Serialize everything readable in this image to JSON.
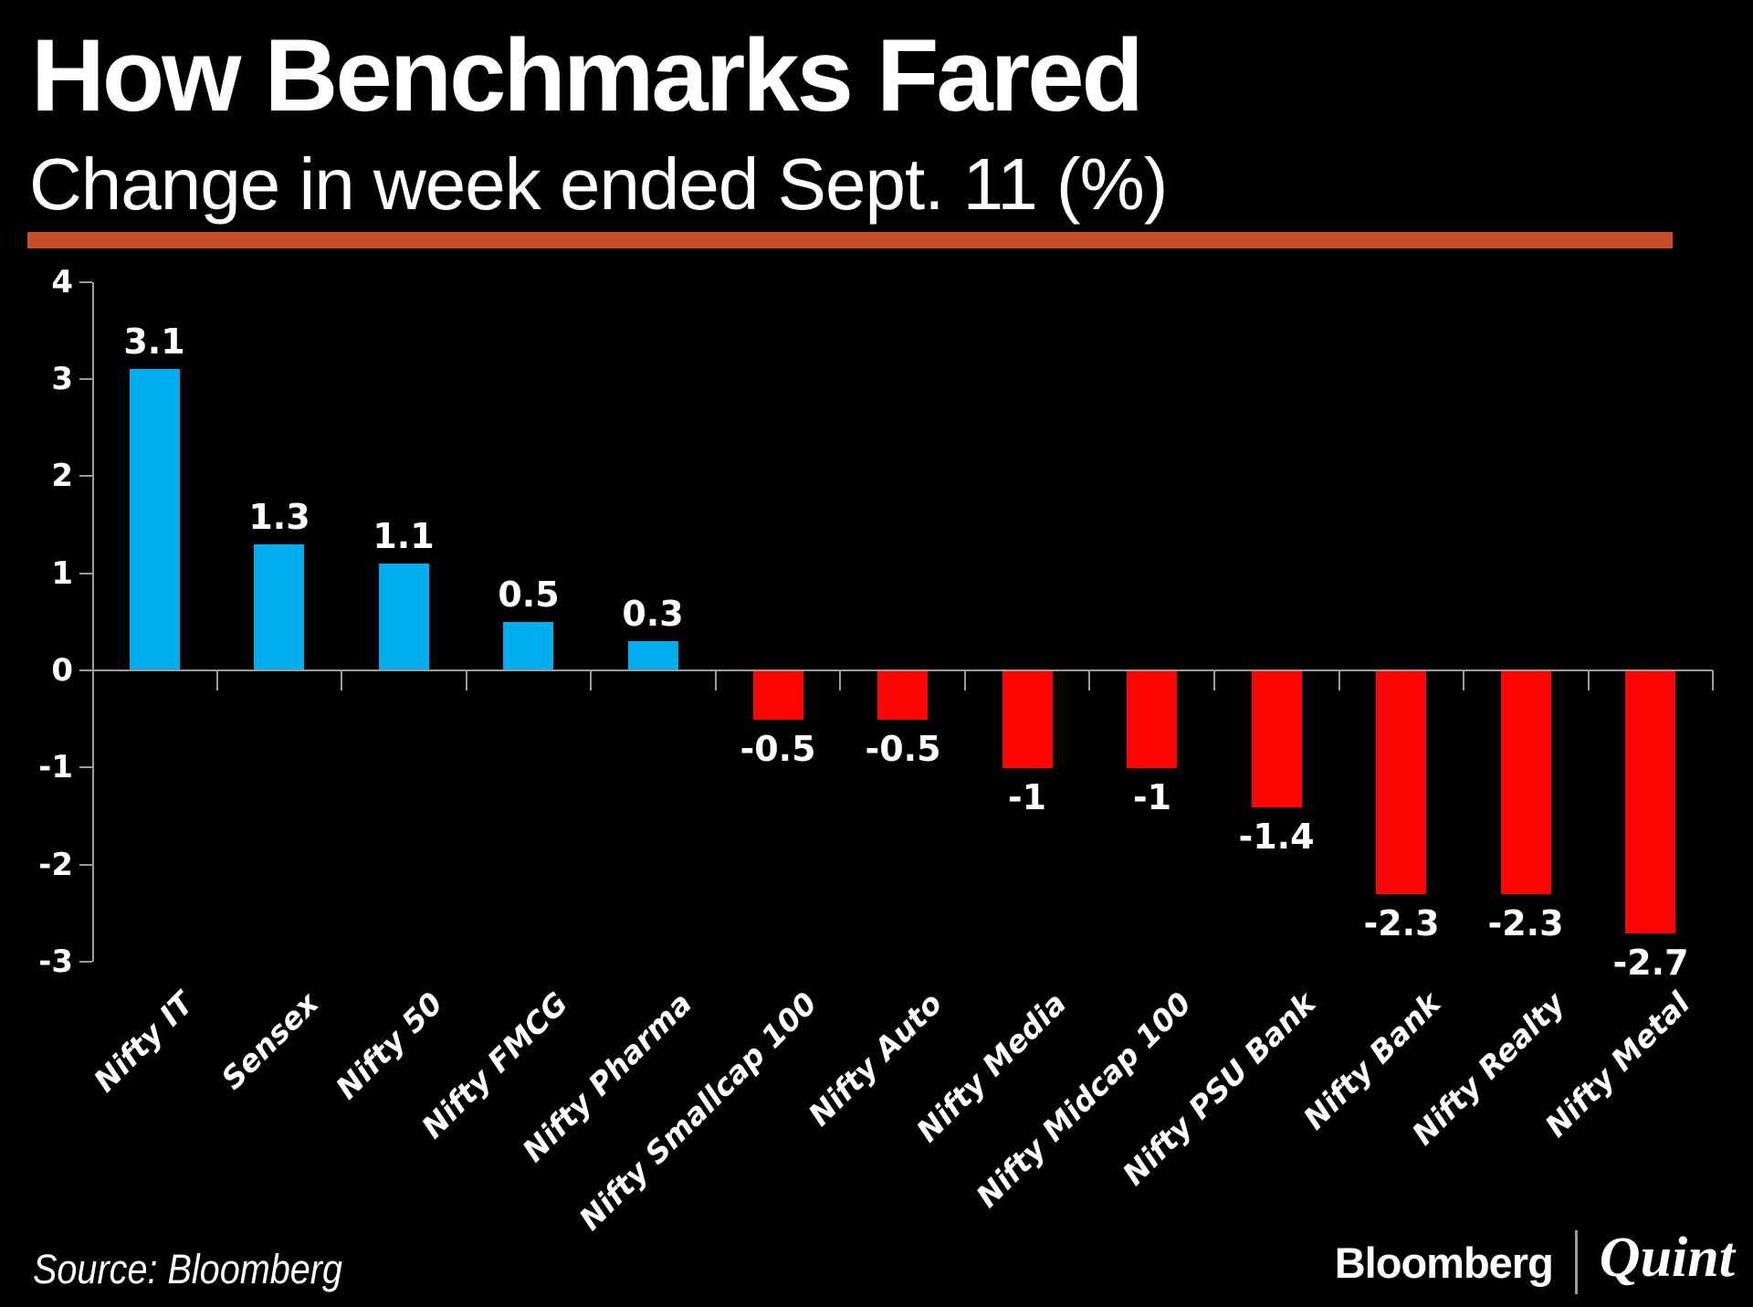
{
  "header": {
    "title": "How Benchmarks Fared",
    "subtitle": "Change in week ended Sept. 11 (%)",
    "accent_color": "#C94E2C"
  },
  "footer": {
    "source": "Source: Bloomberg",
    "logo_bloomberg": "Bloomberg",
    "logo_quint": "Quint"
  },
  "chart_data": {
    "type": "bar",
    "title": "How Benchmarks Fared",
    "subtitle": "Change in week ended Sept. 11 (%)",
    "categories": [
      "Nifty IT",
      "Sensex",
      "Nifty 50",
      "Nifty FMCG",
      "Nifty Pharma",
      "Nifty Smallcap 100",
      "Nifty Auto",
      "Nifty Media",
      "Nifty Midcap 100",
      "Nifty PSU Bank",
      "Nifty Bank",
      "Nifty Realty",
      "Nifty Metal"
    ],
    "values": [
      3.1,
      1.3,
      1.1,
      0.5,
      0.3,
      -0.5,
      -0.5,
      -1,
      -1,
      -1.4,
      -2.3,
      -2.3,
      -2.7
    ],
    "value_labels": [
      "3.1",
      "1.3",
      "1.1",
      "0.5",
      "0.3",
      "-0.5",
      "-0.5",
      "-1",
      "-1",
      "-1.4",
      "-2.3",
      "-2.3",
      "-2.7"
    ],
    "ylim": [
      -3,
      4
    ],
    "yticks": [
      4,
      3,
      2,
      1,
      0,
      -1,
      -2,
      -3
    ],
    "xlabel": "",
    "ylabel": "",
    "grid": false,
    "legend": null,
    "positive_color": "#00ADEF",
    "negative_color": "#FB0505",
    "axis_color": "#9B9B9B",
    "text_color": "#FFFFFF",
    "background_color": "#000000"
  }
}
